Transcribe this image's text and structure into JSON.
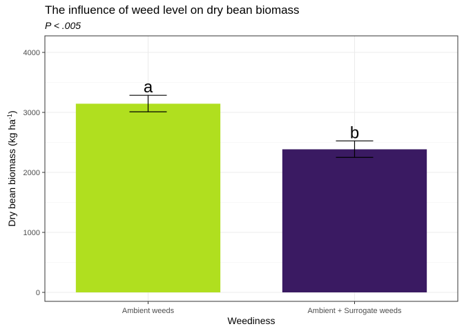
{
  "chart_data": {
    "type": "bar",
    "title": "The influence of weed level on dry bean biomass",
    "subtitle": "P < .005",
    "xlabel": "Weediness",
    "ylabel": "Dry bean biomass (kg ha",
    "ylabel_sup": "-1",
    "ylabel_end": ")",
    "categories": [
      "Ambient weeds",
      "Ambient + Surrogate weeds"
    ],
    "values": [
      3145,
      2385
    ],
    "error_low": [
      3010,
      2250
    ],
    "error_high": [
      3285,
      2525
    ],
    "significance": [
      "a",
      "b"
    ],
    "colors": [
      "#b0df1f",
      "#3a1a62"
    ],
    "ylim": [
      0,
      4000
    ],
    "yticks": [
      0,
      1000,
      2000,
      3000,
      4000
    ],
    "grid": true
  }
}
